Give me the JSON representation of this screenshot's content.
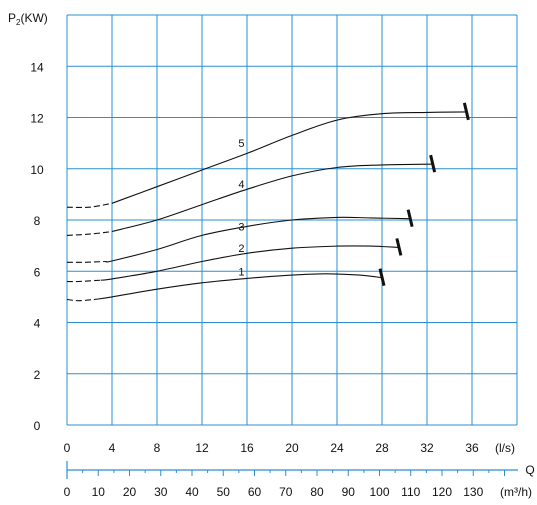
{
  "colors": {
    "grid": "#2a8fd1",
    "axis": "#2a8fd1",
    "curve": "#111111",
    "background": "#ffffff"
  },
  "chart_data": {
    "type": "line",
    "ylabel_main": "P",
    "ylabel_sub": "2",
    "ylabel_unit": "(KW)",
    "xlabel": "Q",
    "x_unit_primary": "(l/s)",
    "x_unit_secondary": "(m³/h)",
    "xlim": [
      0,
      40
    ],
    "ylim": [
      0,
      16
    ],
    "grid": true,
    "y_ticks": [
      0,
      2,
      4,
      6,
      8,
      10,
      12,
      14
    ],
    "x_ticks_ls": [
      0,
      4,
      8,
      12,
      16,
      20,
      24,
      28,
      32,
      36
    ],
    "x_ticks_m3h": [
      0,
      10,
      20,
      30,
      40,
      50,
      60,
      70,
      80,
      90,
      100,
      110,
      120,
      130
    ],
    "series": [
      {
        "name": "1",
        "dashed": [
          [
            0,
            4.9
          ],
          [
            1,
            4.85
          ],
          [
            2.5,
            4.9
          ]
        ],
        "values": [
          [
            2.5,
            4.9
          ],
          [
            4,
            5.0
          ],
          [
            8,
            5.3
          ],
          [
            12,
            5.55
          ],
          [
            16,
            5.72
          ],
          [
            20,
            5.85
          ],
          [
            23,
            5.9
          ],
          [
            26,
            5.85
          ],
          [
            28,
            5.75
          ]
        ],
        "end_x": 28,
        "label_at": [
          15.5,
          6.0
        ]
      },
      {
        "name": "2",
        "dashed": [
          [
            0,
            5.6
          ],
          [
            1,
            5.6
          ],
          [
            3,
            5.65
          ]
        ],
        "values": [
          [
            3,
            5.65
          ],
          [
            4,
            5.7
          ],
          [
            8,
            6.0
          ],
          [
            12,
            6.38
          ],
          [
            16,
            6.7
          ],
          [
            20,
            6.9
          ],
          [
            24,
            6.98
          ],
          [
            27,
            6.98
          ],
          [
            29.5,
            6.93
          ]
        ],
        "end_x": 29.5,
        "label_at": [
          15.5,
          6.9
        ]
      },
      {
        "name": "3",
        "dashed": [
          [
            0,
            6.35
          ],
          [
            1.5,
            6.35
          ],
          [
            3.5,
            6.38
          ]
        ],
        "values": [
          [
            3.5,
            6.38
          ],
          [
            4,
            6.4
          ],
          [
            8,
            6.85
          ],
          [
            12,
            7.4
          ],
          [
            16,
            7.75
          ],
          [
            20,
            8.0
          ],
          [
            24,
            8.1
          ],
          [
            27,
            8.08
          ],
          [
            30.5,
            8.05
          ]
        ],
        "end_x": 30.5,
        "label_at": [
          15.5,
          7.75
        ]
      },
      {
        "name": "4",
        "dashed": [
          [
            0,
            7.4
          ],
          [
            2,
            7.45
          ],
          [
            4,
            7.55
          ]
        ],
        "values": [
          [
            4,
            7.55
          ],
          [
            8,
            8.0
          ],
          [
            12,
            8.6
          ],
          [
            16,
            9.2
          ],
          [
            20,
            9.72
          ],
          [
            24,
            10.05
          ],
          [
            28,
            10.15
          ],
          [
            32.5,
            10.18
          ]
        ],
        "end_x": 32.5,
        "label_at": [
          15.5,
          9.4
        ]
      },
      {
        "name": "5",
        "dashed": [
          [
            0,
            8.5
          ],
          [
            2,
            8.5
          ],
          [
            4,
            8.65
          ]
        ],
        "values": [
          [
            4,
            8.65
          ],
          [
            8,
            9.3
          ],
          [
            12,
            9.95
          ],
          [
            16,
            10.6
          ],
          [
            20,
            11.3
          ],
          [
            24,
            11.9
          ],
          [
            28,
            12.15
          ],
          [
            32,
            12.2
          ],
          [
            35.5,
            12.22
          ]
        ],
        "end_x": 35.5,
        "label_at": [
          15.5,
          11.0
        ]
      }
    ]
  }
}
